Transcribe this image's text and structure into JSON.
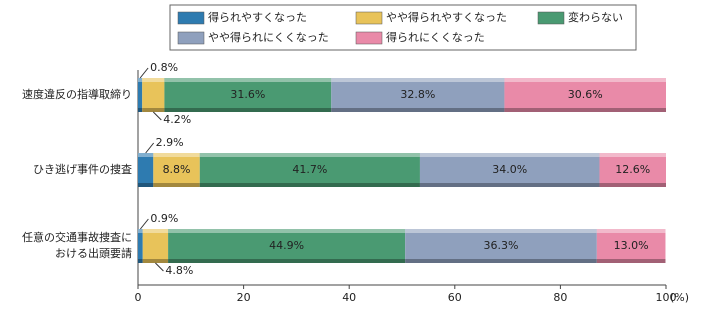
{
  "chart_data": {
    "type": "stacked-bar-horizontal",
    "categories": [
      "速度違反の指導取締り",
      "ひき逃げ事件の捜査",
      "任意の交通事故捜査に\nおける出頭要請"
    ],
    "series": [
      {
        "name": "得られやすくなった",
        "color": "#2e7bb0",
        "values": [
          0.8,
          2.9,
          0.9
        ],
        "value_labels": [
          "0.8%",
          "2.9%",
          "0.9%"
        ]
      },
      {
        "name": "やや得られやすくなった",
        "color": "#e8c35a",
        "values": [
          4.2,
          8.8,
          4.8
        ],
        "value_labels": [
          "4.2%",
          "8.8%",
          "4.8%"
        ]
      },
      {
        "name": "変わらない",
        "color": "#4a9a72",
        "values": [
          31.6,
          41.7,
          44.9
        ],
        "value_labels": [
          "31.6%",
          "41.7%",
          "44.9%"
        ]
      },
      {
        "name": "やや得られにくくなった",
        "color": "#8fa0bd",
        "values": [
          32.8,
          34.0,
          36.3
        ],
        "value_labels": [
          "32.8%",
          "34.0%",
          "36.3%"
        ]
      },
      {
        "name": "得られにくくなった",
        "color": "#e98aa8",
        "values": [
          30.6,
          12.6,
          13.0
        ],
        "value_labels": [
          "30.6%",
          "12.6%",
          "13.0%"
        ]
      }
    ],
    "xlim": [
      0,
      100
    ],
    "xticks": [
      0,
      20,
      40,
      60,
      80,
      100
    ],
    "x_label": "(%)",
    "legend": "top"
  }
}
